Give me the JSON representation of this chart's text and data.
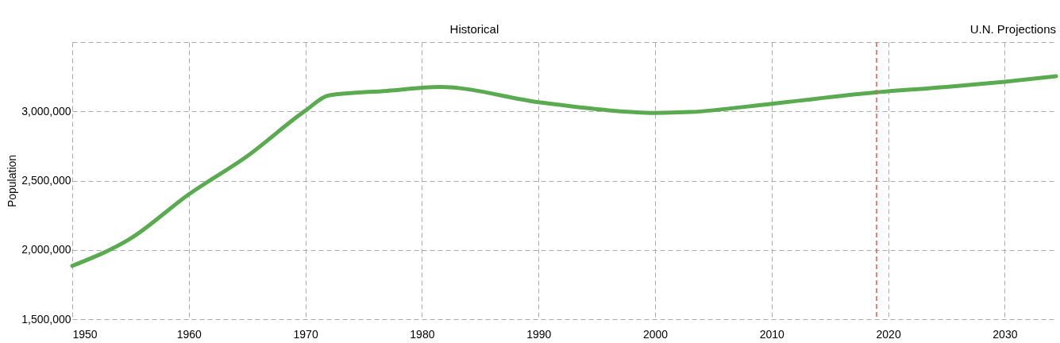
{
  "chart_data": {
    "type": "line",
    "ylabel": "Population",
    "x": [
      1950,
      1955,
      1960,
      1965,
      1970,
      1972,
      1977,
      1981.5,
      1990,
      1995,
      2000,
      2003,
      2010,
      2019,
      2025,
      2030,
      2034.4
    ],
    "series": [
      {
        "color": "#5aab4f",
        "values": [
          1885000,
          2082000,
          2401000,
          2676000,
          3005000,
          3115000,
          3148000,
          3176000,
          3066000,
          3016000,
          2989000,
          2995000,
          3055000,
          3137000,
          3176000,
          3214000,
          3253000
        ]
      }
    ],
    "xlim": [
      1950,
      2034.4
    ],
    "xticks": [
      1950,
      1960,
      1970,
      1980,
      1990,
      2000,
      2010,
      2020,
      2030
    ],
    "ylim": [
      1500000,
      3500000
    ],
    "yticks": [
      {
        "value": 1500000,
        "label": "1,500,000"
      },
      {
        "value": 2000000,
        "label": "2,000,000"
      },
      {
        "value": 2500000,
        "label": "2,500,000"
      },
      {
        "value": 3000000,
        "label": "3,000,000"
      },
      {
        "value": 3500000,
        "label": null
      }
    ],
    "ref_lines": [
      {
        "axis": "x",
        "value": 2019,
        "color": "#e8595a",
        "line_style": "dashed"
      }
    ],
    "annotations": [
      "Historical",
      "U.N. Projections"
    ],
    "grid": true,
    "marker": "none",
    "line_style": "solid"
  }
}
